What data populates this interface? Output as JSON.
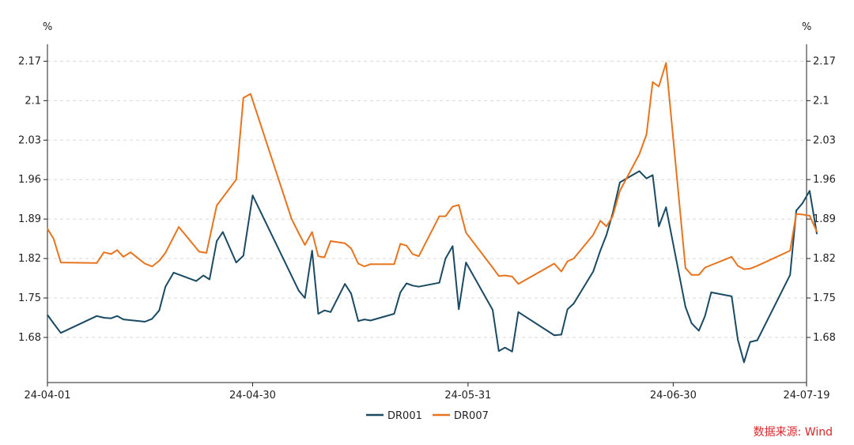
{
  "chart_data": {
    "type": "line",
    "title": "",
    "y_unit_left": "%",
    "y_unit_right": "%",
    "ylim": [
      1.6,
      2.2
    ],
    "yticks": [
      "2.17",
      "2.1",
      "2.03",
      "1.96",
      "1.89",
      "1.82",
      "1.75",
      "1.68"
    ],
    "yticks_values": [
      2.17,
      2.1,
      2.03,
      1.96,
      1.89,
      1.82,
      1.75,
      1.68
    ],
    "xticks": [
      "24-04-01",
      "24-04-30",
      "24-05-31",
      "24-06-30",
      "24-07-19"
    ],
    "xticks_index": [
      0,
      20,
      41,
      61,
      74
    ],
    "x_index_range": [
      0,
      74
    ],
    "grid": true,
    "legend_position": "bottom-center",
    "source": "数据来源: Wind",
    "series": [
      {
        "name": "DR001",
        "color": "#1b4a63",
        "points": [
          [
            0,
            1.72
          ],
          [
            0.6,
            1.705
          ],
          [
            1.3,
            1.688
          ],
          [
            4.8,
            1.718
          ],
          [
            5.5,
            1.715
          ],
          [
            6.2,
            1.714
          ],
          [
            6.8,
            1.718
          ],
          [
            7.4,
            1.712
          ],
          [
            9.5,
            1.708
          ],
          [
            10.2,
            1.713
          ],
          [
            10.9,
            1.728
          ],
          [
            11.5,
            1.77
          ],
          [
            12.3,
            1.795
          ],
          [
            14.5,
            1.78
          ],
          [
            15.2,
            1.79
          ],
          [
            15.8,
            1.783
          ],
          [
            16.5,
            1.851
          ],
          [
            17.1,
            1.867
          ],
          [
            18.4,
            1.813
          ],
          [
            19.1,
            1.825
          ],
          [
            20.0,
            1.932
          ],
          [
            24.5,
            1.763
          ],
          [
            25.1,
            1.75
          ],
          [
            25.8,
            1.834
          ],
          [
            26.4,
            1.722
          ],
          [
            27.0,
            1.728
          ],
          [
            27.6,
            1.725
          ],
          [
            29.0,
            1.775
          ],
          [
            29.6,
            1.758
          ],
          [
            30.3,
            1.709
          ],
          [
            30.9,
            1.712
          ],
          [
            31.5,
            1.71
          ],
          [
            33.8,
            1.722
          ],
          [
            34.4,
            1.76
          ],
          [
            35.0,
            1.776
          ],
          [
            35.6,
            1.772
          ],
          [
            36.2,
            1.77
          ],
          [
            38.2,
            1.777
          ],
          [
            38.8,
            1.82
          ],
          [
            39.5,
            1.842
          ],
          [
            40.1,
            1.73
          ],
          [
            40.8,
            1.813
          ],
          [
            43.4,
            1.729
          ],
          [
            44.0,
            1.656
          ],
          [
            44.6,
            1.662
          ],
          [
            45.3,
            1.655
          ],
          [
            45.9,
            1.725
          ],
          [
            49.4,
            1.684
          ],
          [
            50.1,
            1.685
          ],
          [
            50.7,
            1.73
          ],
          [
            51.3,
            1.74
          ],
          [
            53.2,
            1.797
          ],
          [
            53.9,
            1.834
          ],
          [
            54.5,
            1.862
          ],
          [
            55.1,
            1.9
          ],
          [
            55.8,
            1.955
          ],
          [
            57.7,
            1.975
          ],
          [
            58.4,
            1.962
          ],
          [
            59.0,
            1.968
          ],
          [
            59.6,
            1.877
          ],
          [
            60.3,
            1.911
          ],
          [
            62.2,
            1.734
          ],
          [
            62.8,
            1.705
          ],
          [
            63.5,
            1.692
          ],
          [
            64.1,
            1.718
          ],
          [
            64.7,
            1.76
          ],
          [
            66.7,
            1.753
          ],
          [
            67.3,
            1.676
          ],
          [
            67.9,
            1.636
          ],
          [
            68.5,
            1.672
          ],
          [
            69.2,
            1.675
          ],
          [
            72.4,
            1.791
          ],
          [
            73.0,
            1.905
          ],
          [
            73.6,
            1.918
          ],
          [
            74.3,
            1.94
          ],
          [
            75.0,
            1.864
          ]
        ]
      },
      {
        "name": "DR007",
        "color": "#e8741e",
        "points": [
          [
            0,
            1.873
          ],
          [
            0.6,
            1.855
          ],
          [
            1.3,
            1.813
          ],
          [
            4.8,
            1.812
          ],
          [
            5.5,
            1.831
          ],
          [
            6.2,
            1.828
          ],
          [
            6.8,
            1.835
          ],
          [
            7.4,
            1.823
          ],
          [
            8.1,
            1.831
          ],
          [
            9.5,
            1.811
          ],
          [
            10.2,
            1.806
          ],
          [
            10.9,
            1.816
          ],
          [
            11.5,
            1.83
          ],
          [
            12.8,
            1.876
          ],
          [
            14.8,
            1.832
          ],
          [
            15.5,
            1.83
          ],
          [
            16.5,
            1.914
          ],
          [
            18.4,
            1.96
          ],
          [
            19.1,
            2.105
          ],
          [
            19.8,
            2.112
          ],
          [
            23.8,
            1.89
          ],
          [
            24.5,
            1.865
          ],
          [
            25.1,
            1.844
          ],
          [
            25.8,
            1.867
          ],
          [
            26.4,
            1.824
          ],
          [
            27.0,
            1.822
          ],
          [
            27.6,
            1.851
          ],
          [
            29.0,
            1.847
          ],
          [
            29.6,
            1.838
          ],
          [
            30.3,
            1.811
          ],
          [
            30.9,
            1.806
          ],
          [
            31.5,
            1.81
          ],
          [
            33.8,
            1.81
          ],
          [
            34.4,
            1.846
          ],
          [
            35.0,
            1.843
          ],
          [
            35.6,
            1.828
          ],
          [
            36.2,
            1.824
          ],
          [
            38.2,
            1.895
          ],
          [
            38.8,
            1.895
          ],
          [
            39.5,
            1.912
          ],
          [
            40.1,
            1.915
          ],
          [
            40.8,
            1.866
          ],
          [
            43.4,
            1.804
          ],
          [
            44.0,
            1.789
          ],
          [
            44.6,
            1.79
          ],
          [
            45.3,
            1.788
          ],
          [
            45.9,
            1.775
          ],
          [
            49.4,
            1.811
          ],
          [
            50.1,
            1.797
          ],
          [
            50.7,
            1.815
          ],
          [
            51.3,
            1.82
          ],
          [
            53.2,
            1.862
          ],
          [
            53.9,
            1.887
          ],
          [
            54.5,
            1.877
          ],
          [
            55.1,
            1.895
          ],
          [
            55.8,
            1.94
          ],
          [
            57.7,
            2.005
          ],
          [
            58.4,
            2.04
          ],
          [
            59.0,
            2.133
          ],
          [
            59.6,
            2.125
          ],
          [
            60.3,
            2.167
          ],
          [
            62.2,
            1.803
          ],
          [
            62.8,
            1.791
          ],
          [
            63.5,
            1.791
          ],
          [
            64.1,
            1.804
          ],
          [
            66.7,
            1.823
          ],
          [
            67.3,
            1.807
          ],
          [
            67.9,
            1.801
          ],
          [
            68.5,
            1.802
          ],
          [
            69.2,
            1.807
          ],
          [
            72.4,
            1.834
          ],
          [
            73.0,
            1.899
          ],
          [
            73.6,
            1.898
          ],
          [
            74.3,
            1.896
          ],
          [
            75.0,
            1.868
          ]
        ]
      }
    ]
  }
}
